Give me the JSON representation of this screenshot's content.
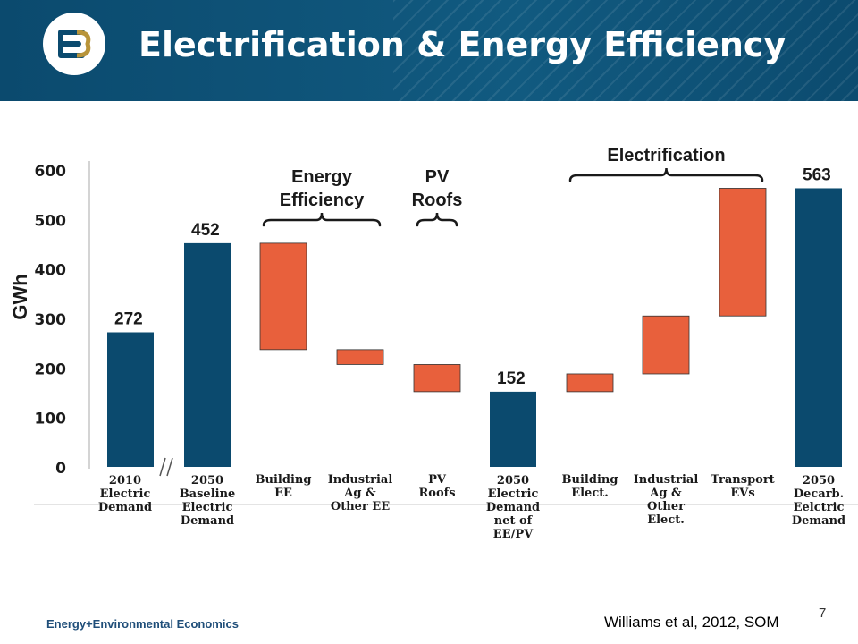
{
  "header": {
    "title": "Electrification & Energy Efficiency",
    "logo_text": "E3"
  },
  "footer": {
    "org": "Energy+Environmental Economics",
    "source": "Williams et al, 2012, SOM",
    "page_number": "7"
  },
  "colors": {
    "total_bar": "#0b4a6e",
    "delta_bar": "#e8603c",
    "header_bg": "#0f5479"
  },
  "chart_data": {
    "type": "bar",
    "subtype": "waterfall",
    "ylabel": "GWh",
    "ylim": [
      0,
      600
    ],
    "yticks": [
      0,
      100,
      200,
      300,
      400,
      500,
      600
    ],
    "axis_break_after_index": 0,
    "categories": [
      [
        "2010",
        "Electric",
        "Demand"
      ],
      [
        "2050",
        "Baseline",
        "Electric",
        "Demand"
      ],
      [
        "Building",
        "EE"
      ],
      [
        "Industrial",
        "Ag &",
        "Other EE"
      ],
      [
        "PV",
        "Roofs"
      ],
      [
        "2050",
        "Electric",
        "Demand",
        "net of",
        "EE/PV"
      ],
      [
        "Building",
        "Elect."
      ],
      [
        "Industrial",
        "Ag &",
        "Other",
        "Elect."
      ],
      [
        "Transport",
        "EVs"
      ],
      [
        "2050",
        "Decarb.",
        "Eelctric",
        "Demand"
      ]
    ],
    "bars": [
      {
        "kind": "total",
        "low": 0,
        "high": 272,
        "label": "272"
      },
      {
        "kind": "total",
        "low": 0,
        "high": 452,
        "label": "452"
      },
      {
        "kind": "delta",
        "low": 237,
        "high": 452,
        "label": ""
      },
      {
        "kind": "delta",
        "low": 207,
        "high": 237,
        "label": ""
      },
      {
        "kind": "delta",
        "low": 152,
        "high": 207,
        "label": ""
      },
      {
        "kind": "total",
        "low": 0,
        "high": 152,
        "label": "152"
      },
      {
        "kind": "delta",
        "low": 152,
        "high": 188,
        "label": ""
      },
      {
        "kind": "delta",
        "low": 188,
        "high": 305,
        "label": ""
      },
      {
        "kind": "delta",
        "low": 305,
        "high": 563,
        "label": ""
      },
      {
        "kind": "total",
        "low": 0,
        "high": 563,
        "label": "563"
      }
    ],
    "group_brackets": [
      {
        "lines": [
          "Energy",
          "Efficiency"
        ],
        "from": 2,
        "to": 3
      },
      {
        "lines": [
          "PV",
          "Roofs"
        ],
        "from": 4,
        "to": 4
      },
      {
        "lines": [
          "Electrification"
        ],
        "from": 6,
        "to": 8
      }
    ]
  }
}
